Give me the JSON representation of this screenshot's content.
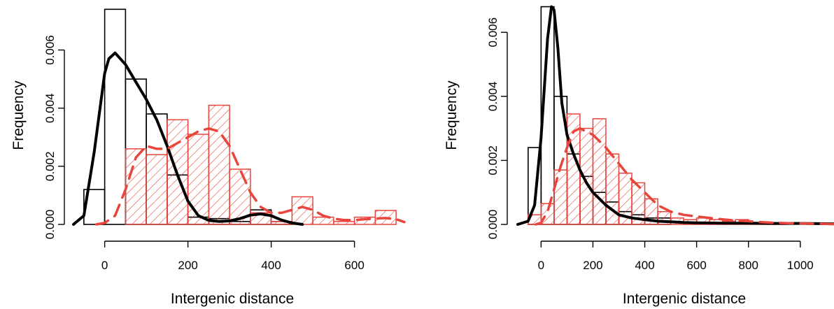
{
  "chart_data": [
    {
      "type": "histogram",
      "xlabel": "Intergenic distance",
      "ylabel": "Frequency",
      "xlim": [
        -75,
        720
      ],
      "ylim": [
        0,
        0.0076
      ],
      "x_ticks": [
        0,
        200,
        400,
        600
      ],
      "y_ticks": [
        "0.000",
        "0.002",
        "0.004",
        "0.006"
      ],
      "y_tick_values": [
        0,
        0.002,
        0.004,
        0.006
      ],
      "series": [
        {
          "style": "outline",
          "color": "#000000",
          "bins": [
            {
              "x0": -50,
              "x1": 0,
              "value": 0.0012
            },
            {
              "x0": 0,
              "x1": 50,
              "value": 0.0074
            },
            {
              "x0": 50,
              "x1": 100,
              "value": 0.005
            },
            {
              "x0": 100,
              "x1": 150,
              "value": 0.0038
            },
            {
              "x0": 150,
              "x1": 200,
              "value": 0.0017
            },
            {
              "x0": 200,
              "x1": 250,
              "value": 0.00025
            },
            {
              "x0": 250,
              "x1": 300,
              "value": 0.0002
            },
            {
              "x0": 300,
              "x1": 350,
              "value": 0.0001
            },
            {
              "x0": 350,
              "x1": 400,
              "value": 0.0005
            },
            {
              "x0": 400,
              "x1": 450,
              "value": 0.0001
            }
          ],
          "density": {
            "x": [
              -75,
              -50,
              -25,
              0,
              10,
              25,
              50,
              75,
              100,
              125,
              150,
              175,
              200,
              225,
              250,
              275,
              300,
              325,
              350,
              375,
              400,
              425,
              450,
              475
            ],
            "y": [
              0,
              0.0003,
              0.0025,
              0.0052,
              0.0057,
              0.0059,
              0.0055,
              0.0049,
              0.0043,
              0.0036,
              0.0027,
              0.0017,
              0.0008,
              0.0003,
              0.00014,
              0.0001,
              0.00012,
              0.0002,
              0.00032,
              0.00036,
              0.0003,
              0.00015,
              5e-05,
              0
            ]
          }
        },
        {
          "style": "hatched",
          "color": "#e8453c",
          "bins": [
            {
              "x0": 50,
              "x1": 100,
              "value": 0.0026
            },
            {
              "x0": 100,
              "x1": 150,
              "value": 0.0024
            },
            {
              "x0": 150,
              "x1": 200,
              "value": 0.0036
            },
            {
              "x0": 200,
              "x1": 250,
              "value": 0.0031
            },
            {
              "x0": 250,
              "x1": 300,
              "value": 0.0041
            },
            {
              "x0": 300,
              "x1": 350,
              "value": 0.0019
            },
            {
              "x0": 350,
              "x1": 400,
              "value": 0.0004
            },
            {
              "x0": 400,
              "x1": 450,
              "value": 0.0001
            },
            {
              "x0": 450,
              "x1": 500,
              "value": 0.00095
            },
            {
              "x0": 500,
              "x1": 550,
              "value": 0.00025
            },
            {
              "x0": 550,
              "x1": 600,
              "value": 0.0001
            },
            {
              "x0": 600,
              "x1": 650,
              "value": 0.00025
            },
            {
              "x0": 650,
              "x1": 700,
              "value": 0.00048
            }
          ],
          "density": {
            "x": [
              -20,
              0,
              25,
              50,
              75,
              100,
              125,
              150,
              175,
              200,
              225,
              250,
              275,
              300,
              325,
              350,
              375,
              400,
              425,
              450,
              475,
              500,
              525,
              550,
              575,
              600,
              625,
              650,
              675,
              700,
              720
            ],
            "y": [
              0,
              5e-05,
              0.0003,
              0.0012,
              0.0023,
              0.0027,
              0.0026,
              0.0026,
              0.0028,
              0.003,
              0.0032,
              0.0033,
              0.0032,
              0.0027,
              0.0019,
              0.0011,
              0.0006,
              0.0004,
              0.0004,
              0.0005,
              0.0006,
              0.0005,
              0.0003,
              0.0002,
              0.00015,
              0.00015,
              0.00018,
              0.0002,
              0.00022,
              0.00018,
              8e-05
            ]
          }
        }
      ]
    },
    {
      "type": "histogram",
      "xlabel": "Intergenic distance",
      "ylabel": "Frequency",
      "xlim": [
        -90,
        1130
      ],
      "ylim": [
        0,
        0.0069
      ],
      "x_ticks": [
        0,
        200,
        400,
        600,
        800,
        1000
      ],
      "y_ticks": [
        "0.000",
        "0.002",
        "0.004",
        "0.006"
      ],
      "y_tick_values": [
        0,
        0.002,
        0.004,
        0.006
      ],
      "series": [
        {
          "style": "outline",
          "color": "#000000",
          "bins": [
            {
              "x0": -50,
              "x1": 0,
              "value": 0.0024
            },
            {
              "x0": 0,
              "x1": 50,
              "value": 0.0068
            },
            {
              "x0": 50,
              "x1": 100,
              "value": 0.004
            },
            {
              "x0": 100,
              "x1": 150,
              "value": 0.0022
            },
            {
              "x0": 150,
              "x1": 200,
              "value": 0.0015
            },
            {
              "x0": 200,
              "x1": 250,
              "value": 0.001
            },
            {
              "x0": 250,
              "x1": 300,
              "value": 0.0007
            },
            {
              "x0": 300,
              "x1": 350,
              "value": 0.0004
            },
            {
              "x0": 350,
              "x1": 400,
              "value": 0.0003
            },
            {
              "x0": 400,
              "x1": 450,
              "value": 0.0002
            },
            {
              "x0": 450,
              "x1": 500,
              "value": 0.0002
            }
          ],
          "density": {
            "x": [
              -90,
              -50,
              -25,
              0,
              25,
              40,
              50,
              65,
              80,
              100,
              125,
              150,
              175,
              200,
              250,
              300,
              350,
              400,
              450,
              500,
              550,
              600,
              700,
              800,
              900,
              1000,
              1130
            ],
            "y": [
              0,
              0.0001,
              0.0006,
              0.0027,
              0.0058,
              0.0068,
              0.0067,
              0.0055,
              0.0038,
              0.0028,
              0.0022,
              0.0017,
              0.0013,
              0.001,
              0.0006,
              0.0003,
              0.0002,
              0.00015,
              0.0001,
              8e-05,
              6e-05,
              5e-05,
              4e-05,
              4e-05,
              3e-05,
              3e-05,
              2e-05
            ]
          }
        },
        {
          "style": "hatched",
          "color": "#e8453c",
          "bins": [
            {
              "x0": -50,
              "x1": 0,
              "value": 0.0003
            },
            {
              "x0": 0,
              "x1": 50,
              "value": 0.00065
            },
            {
              "x0": 50,
              "x1": 100,
              "value": 0.0017
            },
            {
              "x0": 100,
              "x1": 150,
              "value": 0.00345
            },
            {
              "x0": 150,
              "x1": 200,
              "value": 0.003
            },
            {
              "x0": 200,
              "x1": 250,
              "value": 0.0033
            },
            {
              "x0": 250,
              "x1": 300,
              "value": 0.0022
            },
            {
              "x0": 300,
              "x1": 350,
              "value": 0.0016
            },
            {
              "x0": 350,
              "x1": 400,
              "value": 0.0013
            },
            {
              "x0": 400,
              "x1": 450,
              "value": 0.0008
            },
            {
              "x0": 450,
              "x1": 500,
              "value": 0.0004
            },
            {
              "x0": 500,
              "x1": 550,
              "value": 0.0002
            },
            {
              "x0": 550,
              "x1": 600,
              "value": 0.00015
            },
            {
              "x0": 600,
              "x1": 650,
              "value": 0.0002
            },
            {
              "x0": 650,
              "x1": 700,
              "value": 0.00015
            },
            {
              "x0": 700,
              "x1": 750,
              "value": 0.0001
            },
            {
              "x0": 750,
              "x1": 800,
              "value": 0.00015
            },
            {
              "x0": 800,
              "x1": 850,
              "value": 5e-05
            },
            {
              "x0": 850,
              "x1": 900,
              "value": 3e-05
            },
            {
              "x0": 900,
              "x1": 950,
              "value": 3e-05
            }
          ],
          "density": {
            "x": [
              -20,
              0,
              25,
              50,
              75,
              100,
              125,
              150,
              175,
              200,
              225,
              250,
              300,
              350,
              400,
              450,
              500,
              550,
              600,
              650,
              700,
              750,
              800,
              850,
              900,
              950,
              1000,
              1130
            ],
            "y": [
              0,
              5e-05,
              0.0004,
              0.0011,
              0.0018,
              0.0024,
              0.0029,
              0.003,
              0.0029,
              0.0028,
              0.0026,
              0.0024,
              0.0019,
              0.0014,
              0.001,
              0.0006,
              0.0004,
              0.0003,
              0.00025,
              0.0002,
              0.00016,
              0.00012,
              0.0001,
              7e-05,
              5e-05,
              4e-05,
              3e-05,
              1e-05
            ]
          }
        }
      ]
    }
  ]
}
